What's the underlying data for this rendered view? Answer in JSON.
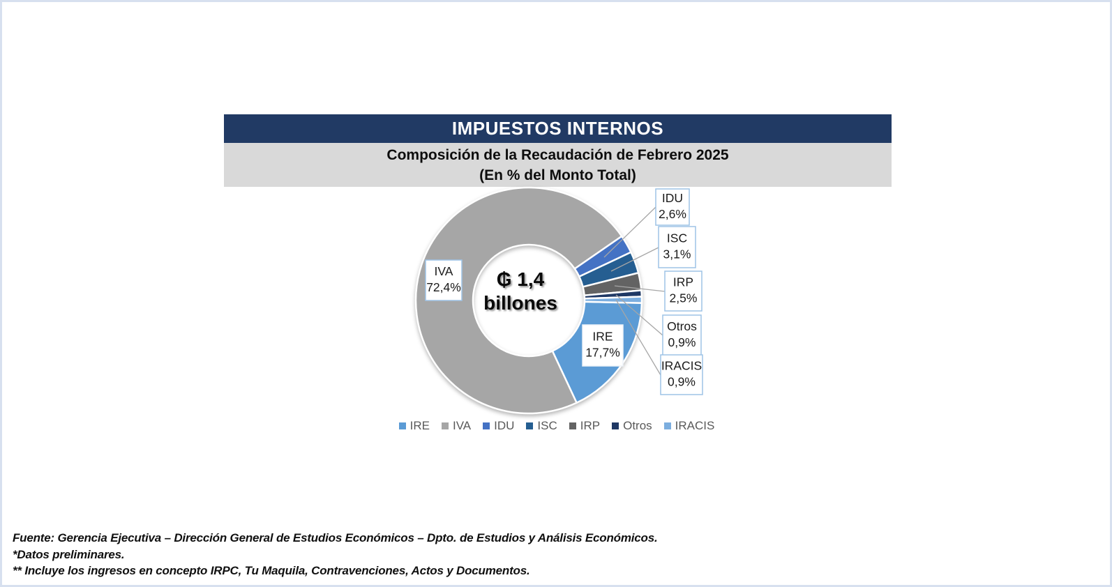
{
  "header": {
    "title": "IMPUESTOS INTERNOS",
    "subtitle_line1": "Composición de la Recaudación de Febrero 2025",
    "subtitle_line2": "(En % del Monto Total)"
  },
  "chart_data": {
    "type": "pie",
    "subtype": "donut",
    "title": "Composición de la Recaudación de Febrero 2025 (En % del Monto Total)",
    "center_label": {
      "line1": "₲ 1,4",
      "line2": "billones"
    },
    "start_angle_deg": 91.3,
    "slices": [
      {
        "name": "IRE",
        "value": 17.7,
        "display": "17,7%",
        "color": "#5B9BD5"
      },
      {
        "name": "IVA",
        "value": 72.4,
        "display": "72,4%",
        "color": "#A6A6A6"
      },
      {
        "name": "IDU",
        "value": 2.6,
        "display": "2,6%",
        "color": "#4472C4"
      },
      {
        "name": "ISC",
        "value": 3.1,
        "display": "3,1%",
        "color": "#255E91"
      },
      {
        "name": "IRP",
        "value": 2.5,
        "display": "2,5%",
        "color": "#636363"
      },
      {
        "name": "Otros",
        "value": 0.9,
        "display": "0,9%",
        "color": "#1F3864"
      },
      {
        "name": "IRACIS",
        "value": 0.9,
        "display": "0,9%",
        "color": "#7CAEDF"
      }
    ],
    "legend": [
      "IRE",
      "IVA",
      "IDU",
      "ISC",
      "IRP",
      "Otros",
      "IRACIS"
    ],
    "legend_position": "bottom"
  },
  "footer": {
    "line1": "Fuente: Gerencia Ejecutiva – Dirección General de Estudios Económicos – Dpto. de Estudios y Análisis Económicos.",
    "line2": "*Datos preliminares.",
    "line3": "** Incluye los ingresos en concepto IRPC, Tu Maquila, Contravenciones, Actos y Documentos."
  },
  "colors": {
    "header_bg": "#213A64",
    "header_text": "#FFFFFF",
    "subtitle_bg": "#D9D9D9",
    "label_box_border": "#9DC3E6",
    "label_box_bg": "#FFFFFF",
    "leader_line": "#A6A6A6",
    "legend_text": "#595959",
    "page_border": "#D7E0EF"
  }
}
